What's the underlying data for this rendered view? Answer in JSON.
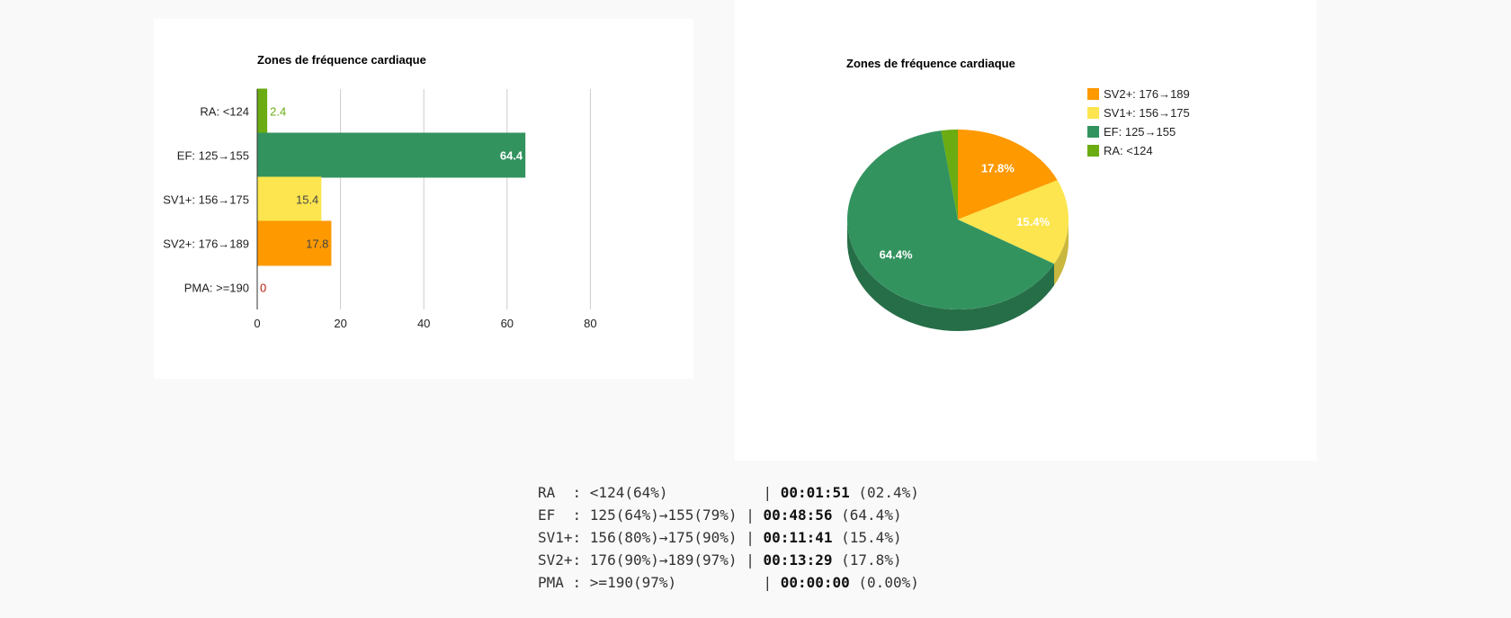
{
  "colors": {
    "RA": "#6aac11",
    "EF": "#33935f",
    "SV1": "#fce54e",
    "SV2": "#fe9900",
    "PMA": "#b71c0c",
    "EF_dark": "#266e48",
    "SV1_dark": "#c9b73e",
    "SV2_dark": "#cb7a00",
    "RA_dark": "#548a0e"
  },
  "chart_data": [
    {
      "type": "bar",
      "orientation": "horizontal",
      "title": "Zones de fréquence cardiaque",
      "categories": [
        "RA: <124",
        "EF: 125→155",
        "SV1+: 156→175",
        "SV2+: 176→189",
        "PMA: >=190"
      ],
      "values": [
        2.4,
        64.4,
        15.4,
        17.8,
        0
      ],
      "value_labels": [
        "2.4",
        "64.4",
        "15.4",
        "17.8",
        "0"
      ],
      "xlim": [
        0,
        90
      ],
      "ticks": [
        0,
        20,
        40,
        60,
        80
      ],
      "tick_labels": [
        "0",
        "20",
        "40",
        "60",
        "80"
      ],
      "grid": true
    },
    {
      "type": "pie",
      "style": "3d",
      "title": "Zones de fréquence cardiaque",
      "slices": [
        {
          "label": "SV2+: 176→189",
          "value": 17.8,
          "pct_label": "17.8%"
        },
        {
          "label": "SV1+: 156→175",
          "value": 15.4,
          "pct_label": "15.4%"
        },
        {
          "label": "EF: 125→155",
          "value": 64.4,
          "pct_label": "64.4%"
        },
        {
          "label": "RA: <124",
          "value": 2.4,
          "pct_label": ""
        }
      ],
      "legend": "right"
    }
  ],
  "stats": [
    {
      "prefix": "RA  : <124(64%)           | ",
      "time": "00:01:51",
      "suffix": " (02.4%)"
    },
    {
      "prefix": "EF  : 125(64%)→155(79%) | ",
      "time": "00:48:56",
      "suffix": " (64.4%)"
    },
    {
      "prefix": "SV1+: 156(80%)→175(90%) | ",
      "time": "00:11:41",
      "suffix": " (15.4%)"
    },
    {
      "prefix": "SV2+: 176(90%)→189(97%) | ",
      "time": "00:13:29",
      "suffix": " (17.8%)"
    },
    {
      "prefix": "PMA : >=190(97%)          | ",
      "time": "00:00:00",
      "suffix": " (0.00%)"
    }
  ]
}
